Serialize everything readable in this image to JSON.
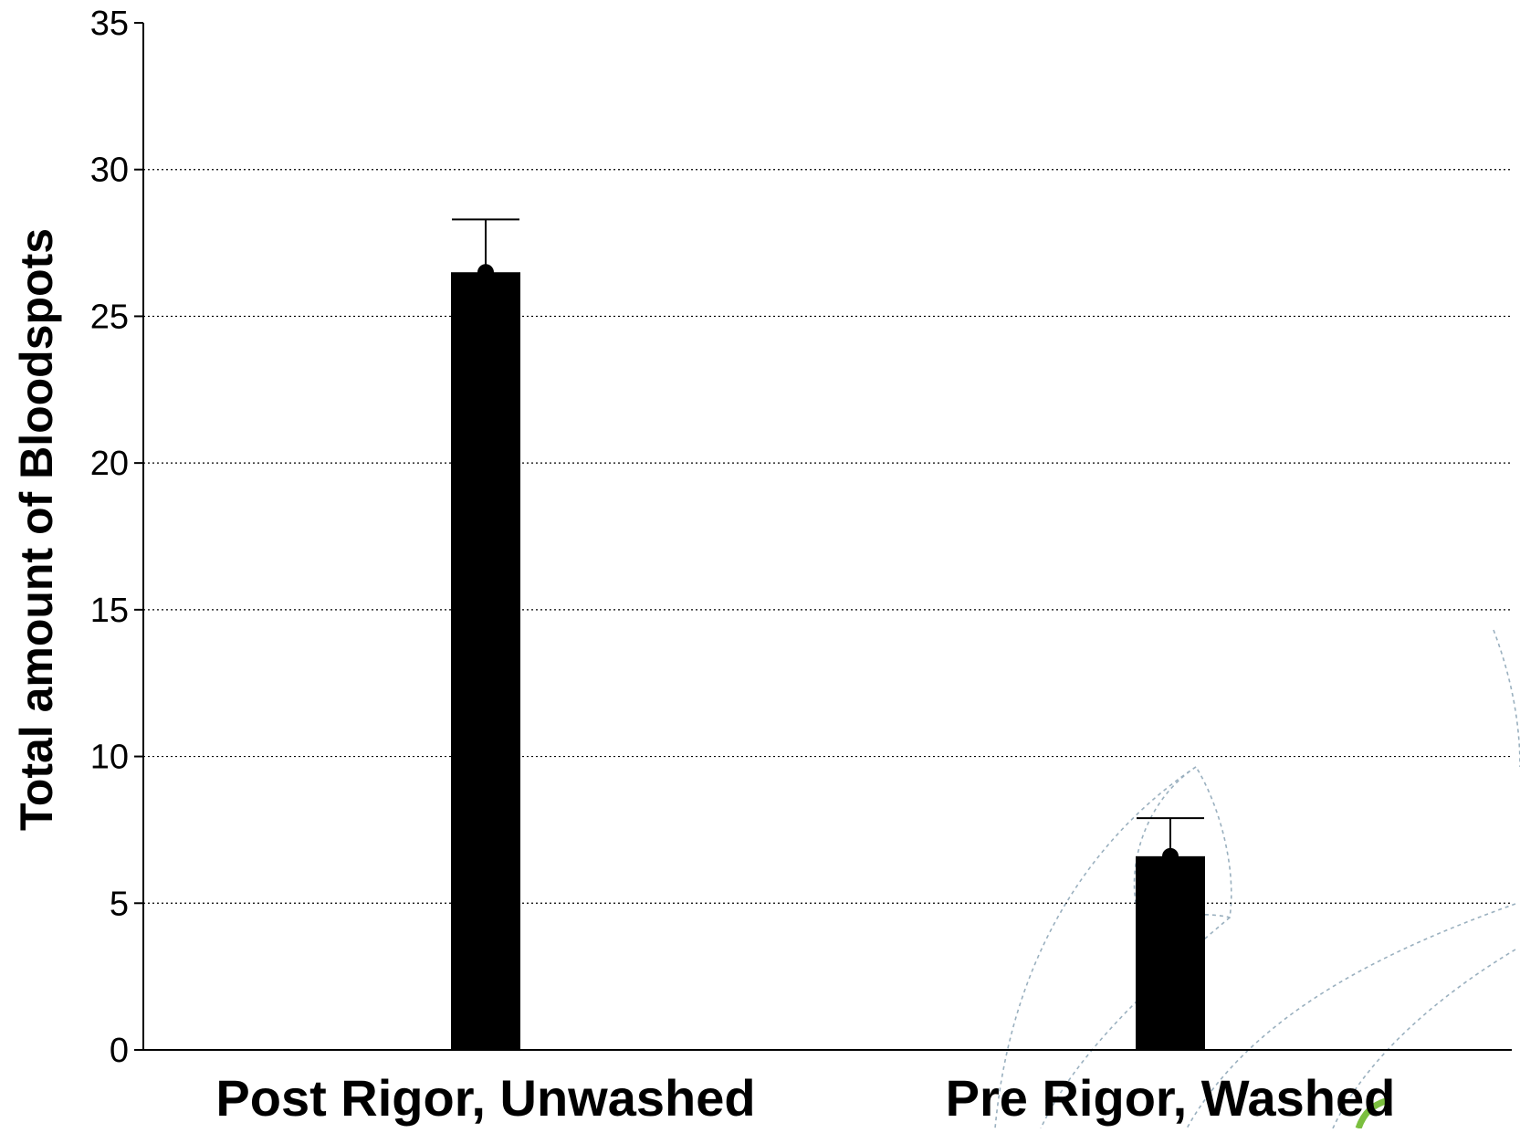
{
  "chart_data": {
    "type": "bar",
    "title": "",
    "xlabel": "",
    "ylabel": "Total amount of Bloodspots",
    "categories": [
      "Post Rigor, Unwashed",
      "Pre Rigor, Washed"
    ],
    "values": [
      26.5,
      6.6
    ],
    "error_upper": [
      28.3,
      7.9
    ],
    "ylim": [
      0,
      35
    ],
    "yticks": [
      0,
      5,
      10,
      15,
      20,
      25,
      30,
      35
    ],
    "grid": "horizontal dotted at 5, 10, 15, 20, 25, 30",
    "legend": "none",
    "bar_color": "#000000",
    "watermark_color": "#9ab0bf",
    "watermark_accent_color": "#7bbf3f"
  }
}
